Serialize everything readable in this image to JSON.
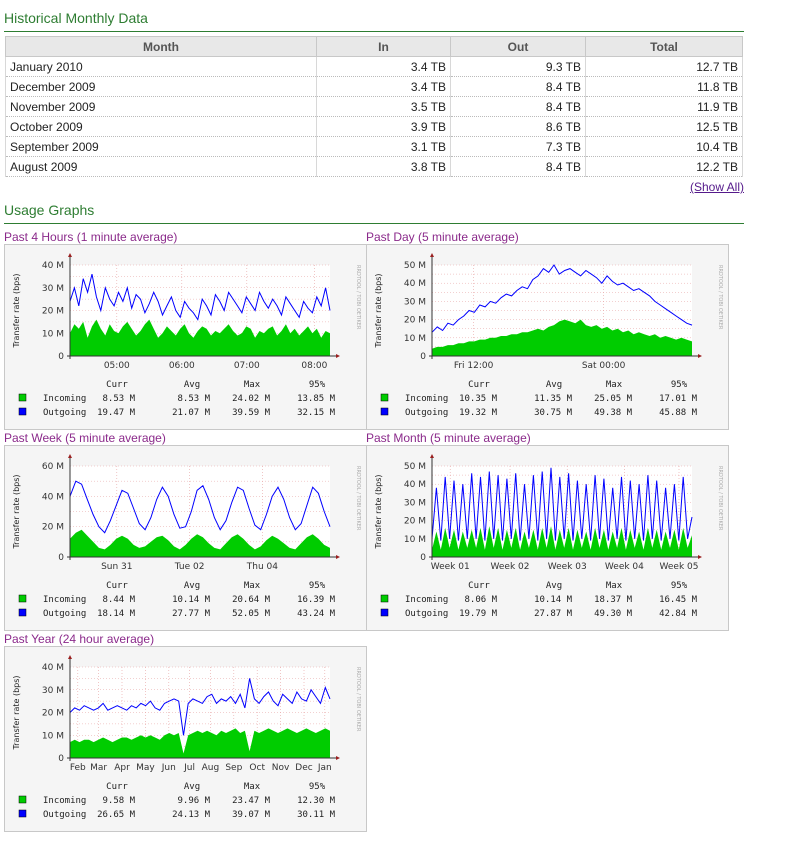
{
  "historical": {
    "title": "Historical Monthly Data",
    "headers": [
      "Month",
      "In",
      "Out",
      "Total"
    ],
    "rows": [
      [
        "January 2010",
        "3.4 TB",
        "9.3 TB",
        "12.7 TB"
      ],
      [
        "December 2009",
        "3.4 TB",
        "8.4 TB",
        "11.8 TB"
      ],
      [
        "November 2009",
        "3.5 TB",
        "8.4 TB",
        "11.9 TB"
      ],
      [
        "October 2009",
        "3.9 TB",
        "8.6 TB",
        "12.5 TB"
      ],
      [
        "September 2009",
        "3.1 TB",
        "7.3 TB",
        "10.4 TB"
      ],
      [
        "August 2009",
        "3.8 TB",
        "8.4 TB",
        "12.2 TB"
      ]
    ],
    "show_all": "(Show All)"
  },
  "usage": {
    "title": "Usage Graphs",
    "stats_headers": [
      "Curr",
      "Avg",
      "Max",
      "95%"
    ],
    "ylabel": "Transfer rate (bps)",
    "side_text": "RRDTOOL / TOBI OETIKER",
    "colors": {
      "incoming": "#00cc00",
      "outgoing": "#0000ff"
    }
  },
  "chart_data": [
    {
      "type": "area",
      "title": "Past 4 Hours (1 minute average)",
      "ylabel": "Transfer rate (bps)",
      "ylim": [
        0,
        40
      ],
      "yunit": "M",
      "yticks": [
        "0",
        "10 M",
        "20 M",
        "30 M",
        "40 M"
      ],
      "ytick_values": [
        0,
        10,
        20,
        30,
        40
      ],
      "xticks": [
        "05:00",
        "06:00",
        "07:00",
        "08:00"
      ],
      "xtick_fracs": [
        0.18,
        0.43,
        0.68,
        0.94
      ],
      "series": [
        {
          "name": "Incoming",
          "values": [
            10,
            14,
            12,
            15,
            8,
            13,
            16,
            12,
            9,
            14,
            11,
            10,
            13,
            15,
            12,
            9,
            11,
            14,
            16,
            12,
            8,
            10,
            13,
            11,
            9,
            12,
            14,
            10,
            8,
            11,
            13,
            12,
            9,
            11,
            10,
            12,
            14,
            11,
            9,
            10,
            13,
            12,
            8,
            11,
            10,
            12,
            13,
            9,
            11,
            14,
            10,
            12,
            9,
            11,
            13,
            10,
            12,
            8,
            11,
            10
          ],
          "stats": [
            "8.53 M",
            "8.53 M",
            "24.02 M",
            "13.85 M"
          ]
        },
        {
          "name": "Outgoing",
          "values": [
            24,
            30,
            22,
            34,
            28,
            36,
            26,
            20,
            30,
            25,
            22,
            28,
            24,
            30,
            21,
            27,
            25,
            19,
            23,
            28,
            24,
            18,
            22,
            26,
            20,
            17,
            24,
            21,
            19,
            16,
            25,
            22,
            18,
            27,
            24,
            20,
            28,
            25,
            22,
            19,
            26,
            23,
            20,
            28,
            24,
            21,
            25,
            22,
            18,
            26,
            23,
            20,
            17,
            24,
            21,
            19,
            26,
            22,
            30,
            20
          ],
          "stats": [
            "19.47 M",
            "21.07 M",
            "39.59 M",
            "32.15 M"
          ]
        }
      ]
    },
    {
      "type": "area",
      "title": "Past Day (5 minute average)",
      "ylabel": "Transfer rate (bps)",
      "ylim": [
        0,
        50
      ],
      "yunit": "M",
      "yticks": [
        "0",
        "10 M",
        "20 M",
        "30 M",
        "40 M",
        "50 M"
      ],
      "ytick_values": [
        0,
        10,
        20,
        30,
        40,
        50
      ],
      "xticks": [
        "Fri 12:00",
        "Sat 00:00"
      ],
      "xtick_fracs": [
        0.16,
        0.66
      ],
      "series": [
        {
          "name": "Incoming",
          "values": [
            4,
            5,
            5,
            6,
            6,
            7,
            7,
            8,
            8,
            9,
            9,
            10,
            10,
            11,
            11,
            12,
            12,
            13,
            13,
            14,
            15,
            14,
            16,
            17,
            19,
            20,
            19,
            18,
            20,
            17,
            16,
            17,
            15,
            16,
            14,
            15,
            13,
            14,
            12,
            13,
            12,
            11,
            12,
            10,
            11,
            10,
            9,
            10,
            9,
            8
          ],
          "stats": [
            "10.35 M",
            "11.35 M",
            "25.05 M",
            "17.01 M"
          ]
        },
        {
          "name": "Outgoing",
          "values": [
            13,
            16,
            14,
            18,
            17,
            20,
            22,
            25,
            24,
            28,
            27,
            30,
            29,
            32,
            34,
            33,
            36,
            38,
            37,
            42,
            44,
            48,
            46,
            50,
            45,
            47,
            48,
            46,
            44,
            47,
            45,
            43,
            40,
            44,
            41,
            39,
            40,
            38,
            36,
            37,
            35,
            33,
            30,
            28,
            26,
            24,
            22,
            20,
            18,
            17
          ],
          "stats": [
            "19.32 M",
            "30.75 M",
            "49.38 M",
            "45.88 M"
          ]
        }
      ]
    },
    {
      "type": "area",
      "title": "Past Week (5 minute average)",
      "ylabel": "Transfer rate (bps)",
      "ylim": [
        0,
        60
      ],
      "yunit": "M",
      "yticks": [
        "0",
        "20 M",
        "40 M",
        "60 M"
      ],
      "ytick_values": [
        0,
        20,
        40,
        60
      ],
      "xticks": [
        "Sun 31",
        "Tue 02",
        "Thu 04"
      ],
      "xtick_fracs": [
        0.18,
        0.46,
        0.74
      ],
      "series": [
        {
          "name": "Incoming",
          "values": [
            12,
            16,
            18,
            14,
            10,
            6,
            5,
            8,
            12,
            14,
            12,
            8,
            6,
            7,
            10,
            13,
            14,
            11,
            7,
            5,
            8,
            12,
            15,
            13,
            9,
            6,
            5,
            9,
            13,
            15,
            12,
            8,
            5,
            7,
            11,
            14,
            12,
            9,
            6,
            5,
            9,
            13,
            15,
            12,
            8,
            6
          ],
          "stats": [
            "8.44 M",
            "10.14 M",
            "20.64 M",
            "16.39 M"
          ]
        },
        {
          "name": "Outgoing",
          "values": [
            40,
            50,
            48,
            38,
            28,
            20,
            16,
            24,
            34,
            44,
            42,
            32,
            22,
            18,
            26,
            38,
            46,
            40,
            28,
            19,
            20,
            30,
            44,
            47,
            38,
            26,
            18,
            24,
            36,
            46,
            44,
            32,
            21,
            18,
            28,
            40,
            46,
            38,
            26,
            18,
            22,
            34,
            46,
            42,
            30,
            20
          ],
          "stats": [
            "18.14 M",
            "27.77 M",
            "52.05 M",
            "43.24 M"
          ]
        }
      ]
    },
    {
      "type": "area",
      "title": "Past Month (5 minute average)",
      "ylabel": "Transfer rate (bps)",
      "ylim": [
        0,
        50
      ],
      "yunit": "M",
      "yticks": [
        "0",
        "10 M",
        "20 M",
        "30 M",
        "40 M",
        "50 M"
      ],
      "ytick_values": [
        0,
        10,
        20,
        30,
        40,
        50
      ],
      "xticks": [
        "Week 01",
        "Week 02",
        "Week 03",
        "Week 04",
        "Week 05"
      ],
      "xtick_fracs": [
        0.07,
        0.3,
        0.52,
        0.74,
        0.95
      ],
      "series": [
        {
          "name": "Incoming",
          "values": [
            4,
            14,
            4,
            16,
            5,
            15,
            4,
            14,
            5,
            15,
            5,
            16,
            4,
            17,
            5,
            16,
            4,
            15,
            5,
            16,
            4,
            14,
            5,
            15,
            4,
            16,
            5,
            17,
            4,
            15,
            5,
            16,
            4,
            15,
            5,
            14,
            4,
            16,
            5,
            15,
            4,
            14,
            5,
            16,
            4,
            15,
            5,
            14,
            4,
            16,
            5,
            15,
            4,
            14,
            5,
            15,
            4,
            16,
            5,
            12
          ],
          "stats": [
            "8.06 M",
            "10.14 M",
            "18.37 M",
            "16.45 M"
          ]
        },
        {
          "name": "Outgoing",
          "values": [
            10,
            38,
            9,
            44,
            10,
            42,
            9,
            40,
            10,
            46,
            10,
            44,
            9,
            47,
            10,
            45,
            9,
            43,
            10,
            46,
            9,
            40,
            10,
            45,
            9,
            47,
            10,
            49,
            9,
            44,
            10,
            46,
            9,
            42,
            10,
            40,
            9,
            45,
            10,
            43,
            9,
            38,
            10,
            44,
            9,
            42,
            10,
            40,
            9,
            45,
            10,
            42,
            9,
            38,
            10,
            40,
            9,
            44,
            10,
            22
          ],
          "stats": [
            "19.79 M",
            "27.87 M",
            "49.30 M",
            "42.84 M"
          ]
        }
      ]
    },
    {
      "type": "area",
      "title": "Past Year (24 hour average)",
      "ylabel": "Transfer rate (bps)",
      "ylim": [
        0,
        40
      ],
      "yunit": "M",
      "yticks": [
        "0",
        "10 M",
        "20 M",
        "30 M",
        "40 M"
      ],
      "ytick_values": [
        0,
        10,
        20,
        30,
        40
      ],
      "xticks": [
        "Feb",
        "Mar",
        "Apr",
        "May",
        "Jun",
        "Jul",
        "Aug",
        "Sep",
        "Oct",
        "Nov",
        "Dec",
        "Jan"
      ],
      "xtick_fracs": [
        0.03,
        0.11,
        0.2,
        0.29,
        0.38,
        0.46,
        0.54,
        0.63,
        0.72,
        0.81,
        0.9,
        0.98
      ],
      "series": [
        {
          "name": "Incoming",
          "values": [
            7,
            8,
            7,
            8,
            8,
            7,
            8,
            9,
            8,
            7,
            8,
            9,
            9,
            8,
            9,
            10,
            9,
            10,
            9,
            8,
            10,
            11,
            10,
            11,
            2,
            10,
            11,
            12,
            11,
            12,
            11,
            10,
            12,
            11,
            12,
            13,
            11,
            12,
            3,
            12,
            11,
            12,
            13,
            12,
            11,
            12,
            13,
            12,
            11,
            12,
            13,
            12,
            11,
            12,
            13,
            12
          ],
          "stats": [
            "9.58 M",
            "9.96 M",
            "23.47 M",
            "12.30 M"
          ]
        },
        {
          "name": "Outgoing",
          "values": [
            20,
            22,
            21,
            23,
            22,
            21,
            22,
            24,
            21,
            22,
            23,
            22,
            21,
            23,
            22,
            24,
            23,
            25,
            22,
            21,
            24,
            25,
            26,
            25,
            10,
            24,
            26,
            25,
            24,
            27,
            28,
            24,
            26,
            25,
            27,
            24,
            28,
            22,
            35,
            26,
            24,
            27,
            29,
            25,
            23,
            28,
            26,
            24,
            29,
            26,
            25,
            30,
            27,
            24,
            31,
            26
          ],
          "stats": [
            "26.65 M",
            "24.13 M",
            "39.07 M",
            "30.11 M"
          ]
        }
      ]
    }
  ]
}
